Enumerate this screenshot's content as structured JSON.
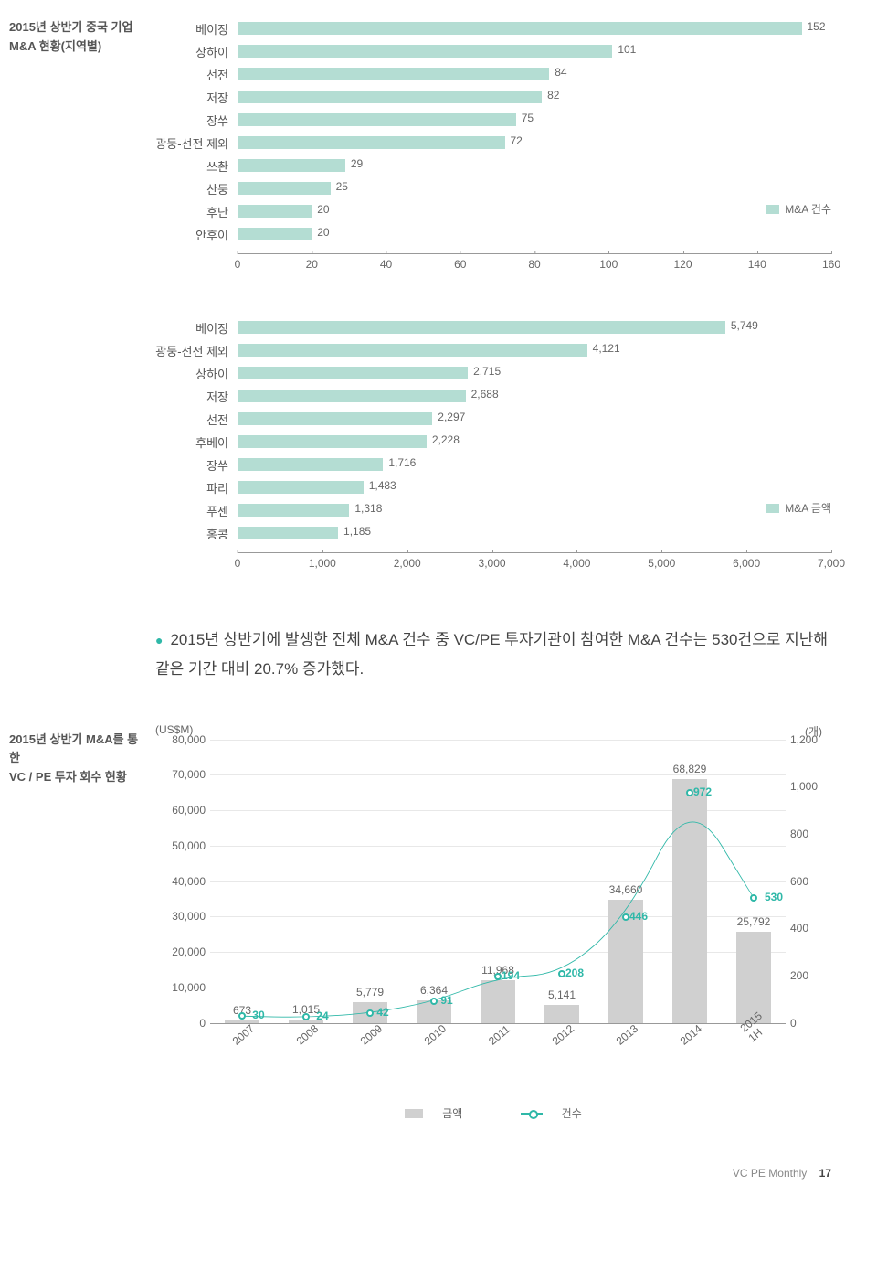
{
  "colors": {
    "bar_fill": "#b4ddd3",
    "line_stroke": "#2fb8a8",
    "text": "#555555",
    "grid": "#e8e8e8",
    "combo_bar": "#d0d0d0"
  },
  "chart1": {
    "title_line1": "2015년 상반기 중국 기업",
    "title_line2": "M&A 현황(지역별)",
    "legend": "M&A 건수",
    "xmax": 160,
    "ticks": [
      0,
      20,
      40,
      60,
      80,
      100,
      120,
      140,
      160
    ],
    "rows": [
      {
        "label": "베이징",
        "value": 152
      },
      {
        "label": "상하이",
        "value": 101
      },
      {
        "label": "선전",
        "value": 84
      },
      {
        "label": "저장",
        "value": 82
      },
      {
        "label": "장쑤",
        "value": 75
      },
      {
        "label": "광둥-선전 제외",
        "value": 72
      },
      {
        "label": "쓰촨",
        "value": 29
      },
      {
        "label": "산둥",
        "value": 25
      },
      {
        "label": "후난",
        "value": 20
      },
      {
        "label": "안후이",
        "value": 20
      }
    ]
  },
  "chart2": {
    "legend": "M&A 금액",
    "xmax": 7000,
    "ticks": [
      0,
      1000,
      2000,
      3000,
      4000,
      5000,
      6000,
      7000
    ],
    "tick_labels": [
      "0",
      "1,000",
      "2,000",
      "3,000",
      "4,000",
      "5,000",
      "6,000",
      "7,000"
    ],
    "rows": [
      {
        "label": "베이징",
        "value": 5749,
        "display": "5,749"
      },
      {
        "label": "광둥-선전 제외",
        "value": 4121,
        "display": "4,121"
      },
      {
        "label": "상하이",
        "value": 2715,
        "display": "2,715"
      },
      {
        "label": "저장",
        "value": 2688,
        "display": "2,688"
      },
      {
        "label": "선전",
        "value": 2297,
        "display": "2,297"
      },
      {
        "label": "후베이",
        "value": 2228,
        "display": "2,228"
      },
      {
        "label": "장쑤",
        "value": 1716,
        "display": "1,716"
      },
      {
        "label": "파리",
        "value": 1483,
        "display": "1,483"
      },
      {
        "label": "푸젠",
        "value": 1318,
        "display": "1,318"
      },
      {
        "label": "홍콩",
        "value": 1185,
        "display": "1,185"
      }
    ]
  },
  "bullet": "2015년 상반기에 발생한 전체 M&A 건수 중 VC/PE 투자기관이 참여한 M&A 건수는 530건으로 지난해 같은 기간 대비 20.7% 증가했다.",
  "combo": {
    "title_line1": "2015년 상반기 M&A를 통한",
    "title_line2": "VC / PE 투자 회수 현황",
    "left_unit": "(US$M)",
    "right_unit": "(개)",
    "left_max": 80000,
    "right_max": 1200,
    "left_ticks": [
      0,
      10000,
      20000,
      30000,
      40000,
      50000,
      60000,
      70000,
      80000
    ],
    "left_tick_labels": [
      "0",
      "10,000",
      "20,000",
      "30,000",
      "40,000",
      "50,000",
      "60,000",
      "70,000",
      "80,000"
    ],
    "right_ticks": [
      0,
      200,
      400,
      600,
      800,
      1000,
      1200
    ],
    "right_tick_labels": [
      "0",
      "200",
      "400",
      "600",
      "800",
      "1,000",
      "1,200"
    ],
    "categories": [
      "2007",
      "2008",
      "2009",
      "2010",
      "2011",
      "2012",
      "2013",
      "2014",
      "2015 1H"
    ],
    "bars": [
      673,
      1015,
      5779,
      6364,
      11968,
      5141,
      34660,
      68829,
      25792
    ],
    "bar_labels": [
      "673",
      "1,015",
      "5,779",
      "6,364",
      "11,968",
      "5,141",
      "34,660",
      "68,829",
      "25,792"
    ],
    "line": [
      30,
      24,
      42,
      91,
      194,
      208,
      446,
      972,
      530
    ],
    "legend_bar": "금액",
    "legend_line": "건수"
  },
  "footer": {
    "text": "VC PE Monthly",
    "page": "17"
  }
}
